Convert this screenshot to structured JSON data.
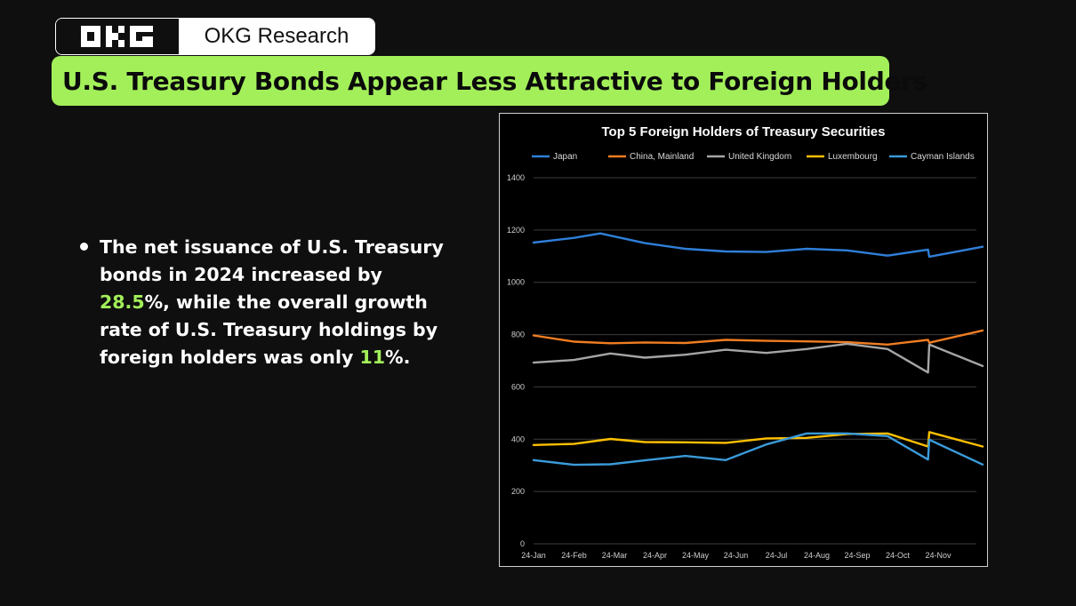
{
  "brand": {
    "logo_text": "OKG",
    "name": "OKG Research"
  },
  "headline": "U.S. Treasury Bonds Appear Less Attractive to Foreign  Holders",
  "bullet": {
    "text_1": "The net issuance of U.S. Treasury bonds in 2024 increased by ",
    "value_1": "28.5",
    "text_2": "%, while the overall growth rate of U.S. Treasury holdings by foreign holders was only ",
    "value_2": "11",
    "text_3": "%."
  },
  "colors": {
    "accent": "#a3ef5a",
    "background": "#0f0f0f"
  },
  "chart_data": {
    "type": "line",
    "title": "Top 5 Foreign Holders of Treasury Securities",
    "xlabel": "",
    "ylabel": "",
    "ylim": [
      0,
      1400
    ],
    "yticks": [
      0,
      200,
      400,
      600,
      800,
      1000,
      1200,
      1400
    ],
    "grid": true,
    "legend_position": "top",
    "x_ticks": [
      "24-Jan",
      "24-Feb",
      "24-Mar",
      "24-Apr",
      "24-May",
      "24-Jun",
      "24-Jul",
      "24-Aug",
      "24-Sep",
      "24-Oct",
      "24-Nov"
    ],
    "series": [
      {
        "name": "Japan",
        "color": "#2f7fd9",
        "points": [
          [
            0,
            1152
          ],
          [
            1,
            1170
          ],
          [
            1.65,
            1187
          ],
          [
            2.75,
            1150
          ],
          [
            3.75,
            1128
          ],
          [
            4.75,
            1118
          ],
          [
            5.75,
            1116
          ],
          [
            6.75,
            1128
          ],
          [
            7.75,
            1122
          ],
          [
            8.75,
            1102
          ],
          [
            9.75,
            1125
          ],
          [
            9.78,
            1098
          ],
          [
            11.1,
            1136
          ]
        ]
      },
      {
        "name": "China, Mainland",
        "color": "#f07d22",
        "points": [
          [
            0,
            797
          ],
          [
            1,
            773
          ],
          [
            1.9,
            767
          ],
          [
            2.75,
            770
          ],
          [
            3.75,
            768
          ],
          [
            4.75,
            780
          ],
          [
            5.75,
            776
          ],
          [
            6.75,
            774
          ],
          [
            7.75,
            771
          ],
          [
            8.75,
            762
          ],
          [
            9.75,
            780
          ],
          [
            9.78,
            769
          ],
          [
            11.1,
            816
          ]
        ]
      },
      {
        "name": "United Kingdom",
        "color": "#a5a5a5",
        "points": [
          [
            0,
            693
          ],
          [
            1,
            703
          ],
          [
            1.9,
            728
          ],
          [
            2.75,
            712
          ],
          [
            3.75,
            723
          ],
          [
            4.75,
            742
          ],
          [
            5.75,
            730
          ],
          [
            6.75,
            745
          ],
          [
            7.75,
            765
          ],
          [
            8.75,
            745
          ],
          [
            9.75,
            655
          ],
          [
            9.78,
            762
          ],
          [
            11.1,
            680
          ]
        ]
      },
      {
        "name": "Luxembourg",
        "color": "#ffc000",
        "points": [
          [
            0,
            378
          ],
          [
            1,
            382
          ],
          [
            1.9,
            401
          ],
          [
            2.75,
            389
          ],
          [
            3.75,
            388
          ],
          [
            4.75,
            386
          ],
          [
            5.75,
            403
          ],
          [
            6.75,
            405
          ],
          [
            7.75,
            420
          ],
          [
            8.75,
            422
          ],
          [
            9.75,
            372
          ],
          [
            9.78,
            427
          ],
          [
            11.1,
            372
          ]
        ]
      },
      {
        "name": "Cayman Islands",
        "color": "#3a9ad9",
        "points": [
          [
            0,
            320
          ],
          [
            1,
            302
          ],
          [
            1.9,
            304
          ],
          [
            2.75,
            319
          ],
          [
            3.75,
            336
          ],
          [
            4.75,
            320
          ],
          [
            5.75,
            380
          ],
          [
            6.75,
            422
          ],
          [
            7.75,
            422
          ],
          [
            8.75,
            412
          ],
          [
            9.75,
            322
          ],
          [
            9.78,
            398
          ],
          [
            11.1,
            303
          ]
        ]
      }
    ]
  }
}
